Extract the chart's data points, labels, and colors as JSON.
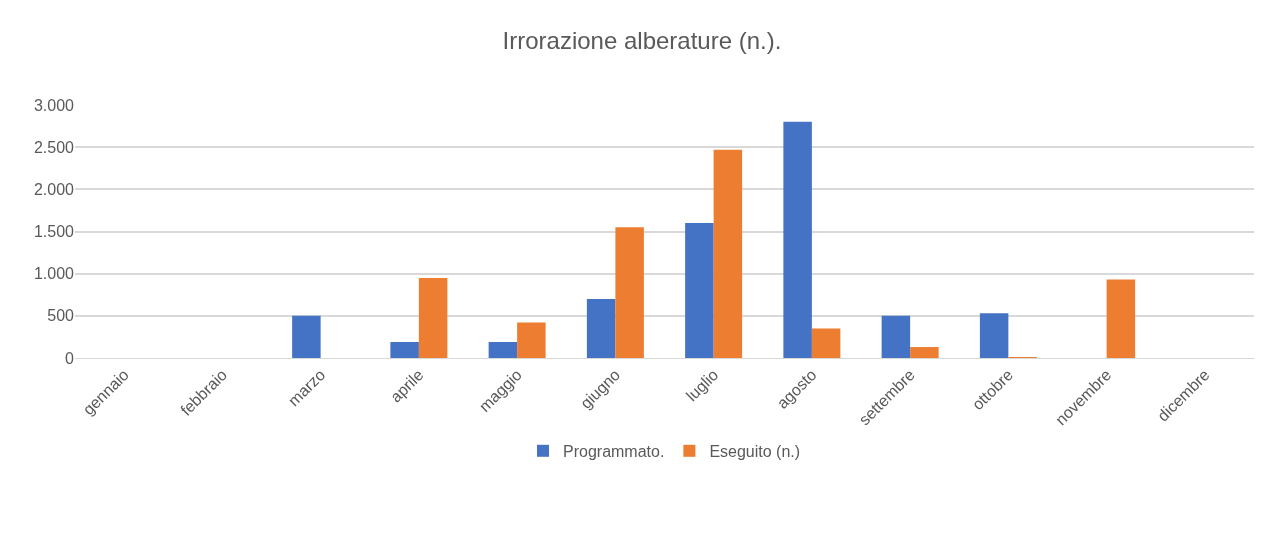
{
  "chart_data": {
    "type": "bar",
    "title": "Irrorazione alberature (n.).",
    "categories": [
      "gennaio",
      "febbraio",
      "marzo",
      "aprile",
      "maggio",
      "giugno",
      "luglio",
      "agosto",
      "settembre",
      "ottobre",
      "novembre",
      "dicembre"
    ],
    "series": [
      {
        "name": "Programmato.",
        "color": "#4472c4",
        "values": [
          null,
          null,
          500,
          190,
          190,
          700,
          1600,
          2800,
          500,
          530,
          null,
          null
        ]
      },
      {
        "name": "Eseguito (n.)",
        "color": "#ed7d31",
        "values": [
          null,
          null,
          null,
          950,
          420,
          1550,
          2470,
          350,
          130,
          10,
          930,
          null
        ]
      }
    ],
    "ylim": [
      0,
      3000
    ],
    "yticks": [
      {
        "value": 0,
        "label": "0"
      },
      {
        "value": 500,
        "label": "500"
      },
      {
        "value": 1000,
        "label": "1.000"
      },
      {
        "value": 1500,
        "label": "1.500"
      },
      {
        "value": 2000,
        "label": "2.000"
      },
      {
        "value": 2500,
        "label": "2.500"
      },
      {
        "value": 3000,
        "label": "3.000"
      }
    ],
    "grid": "y",
    "legend": "bottom"
  }
}
